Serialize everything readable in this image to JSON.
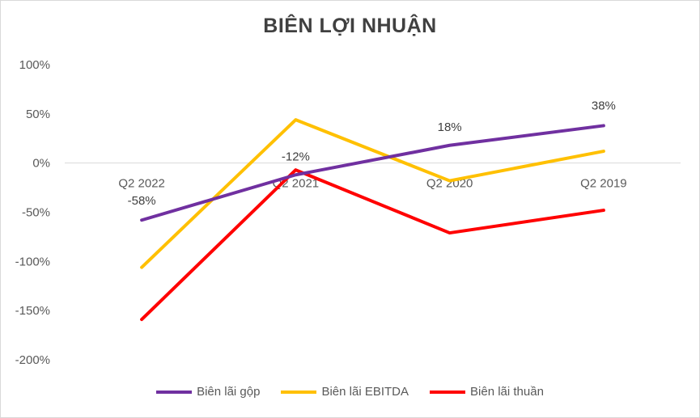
{
  "chart_data": {
    "type": "line",
    "title": "BIÊN LỢI NHUẬN",
    "categories": [
      "Q2 2022",
      "Q2 2021",
      "Q2 2020",
      "Q2 2019"
    ],
    "ylim": [
      -200,
      100
    ],
    "yticks": [
      100,
      50,
      0,
      -50,
      -100,
      -150,
      -200
    ],
    "ytick_labels": [
      "100%",
      "50%",
      "0%",
      "-50%",
      "-100%",
      "-150%",
      "-200%"
    ],
    "grid": false,
    "legend_position": "bottom",
    "series": [
      {
        "name": "Biên lãi gộp",
        "color": "#7030a0",
        "values": [
          -58,
          -12,
          18,
          38
        ],
        "labels": [
          "-58%",
          "-12%",
          "18%",
          "38%"
        ]
      },
      {
        "name": "Biên lãi EBITDA",
        "color": "#ffc000",
        "values": [
          -106,
          44,
          -18,
          12
        ]
      },
      {
        "name": "Biên lãi thuần",
        "color": "#ff0000",
        "values": [
          -159,
          -7,
          -71,
          -48
        ]
      }
    ]
  }
}
